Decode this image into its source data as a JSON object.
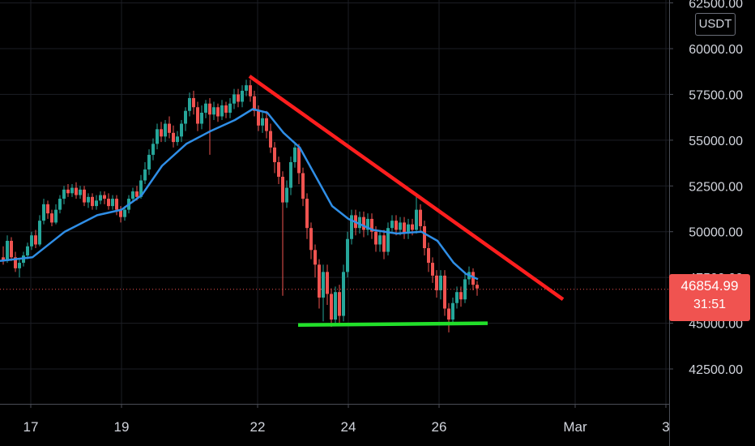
{
  "chart_data": {
    "type": "candlestick",
    "title": "",
    "xlabel": "",
    "ylabel": "",
    "y_unit": "USDT",
    "ylim": [
      40500,
      62800
    ],
    "y_ticks": [
      "62500.00",
      "60000.00",
      "57500.00",
      "55000.00",
      "52500.00",
      "50000.00",
      "47500.00",
      "45000.00",
      "42500.00"
    ],
    "y_tick_values": [
      62500,
      60000,
      57500,
      55000,
      52500,
      50000,
      47500,
      45000,
      42500
    ],
    "x_ticks": [
      "17",
      "19",
      "22",
      "24",
      "26",
      "Mar",
      "3"
    ],
    "current_price": "46854.99",
    "current_price_value": 46854.99,
    "countdown": "31:51",
    "grid": true,
    "colors": {
      "background": "#000000",
      "grid": "#1c1e24",
      "up": "#26a69a",
      "down": "#ef5350",
      "moving_average": "#2f8ee6",
      "resistance_line": "#ff1e1e",
      "support_line": "#22e02a",
      "price_line": "#f05350"
    },
    "series": [
      {
        "type": "moving_average",
        "points": [
          [
            0,
            48400
          ],
          [
            40,
            48600
          ],
          [
            80,
            50000
          ],
          [
            120,
            50900
          ],
          [
            150,
            51200
          ],
          [
            175,
            52000
          ],
          [
            200,
            53600
          ],
          [
            230,
            54800
          ],
          [
            260,
            55500
          ],
          [
            290,
            56100
          ],
          [
            312,
            56700
          ],
          [
            330,
            56500
          ],
          [
            350,
            55400
          ],
          [
            370,
            54600
          ],
          [
            390,
            53000
          ],
          [
            410,
            51400
          ],
          [
            430,
            50700
          ],
          [
            460,
            50100
          ],
          [
            490,
            49900
          ],
          [
            520,
            50000
          ],
          [
            540,
            49500
          ],
          [
            560,
            48300
          ],
          [
            575,
            47700
          ],
          [
            590,
            47400
          ]
        ]
      },
      {
        "type": "resistance_trendline",
        "points": [
          [
            308,
            58500
          ],
          [
            695,
            46300
          ]
        ]
      },
      {
        "type": "support_trendline",
        "points": [
          [
            368,
            44900
          ],
          [
            602,
            45000
          ]
        ]
      }
    ],
    "candles": [
      [
        4,
        48600,
        48400,
        49200,
        48200
      ],
      [
        9,
        48400,
        49500,
        49800,
        48300
      ],
      [
        14,
        49500,
        48600,
        49700,
        48400
      ],
      [
        19,
        48600,
        48000,
        48900,
        47800
      ],
      [
        24,
        48000,
        48300,
        48500,
        47500
      ],
      [
        29,
        48300,
        48700,
        48900,
        48100
      ],
      [
        34,
        48700,
        49200,
        49400,
        48500
      ],
      [
        39,
        49200,
        49800,
        50000,
        49000
      ],
      [
        44,
        49800,
        49300,
        50100,
        49100
      ],
      [
        49,
        49300,
        50600,
        50900,
        49200
      ],
      [
        54,
        50600,
        51500,
        51800,
        50400
      ],
      [
        59,
        51500,
        51000,
        51700,
        50700
      ],
      [
        64,
        51000,
        50500,
        51200,
        50300
      ],
      [
        69,
        50500,
        51200,
        51500,
        50400
      ],
      [
        74,
        51200,
        51800,
        52000,
        51000
      ],
      [
        79,
        51800,
        52300,
        52500,
        51500
      ],
      [
        84,
        52300,
        52100,
        52600,
        51900
      ],
      [
        89,
        52100,
        52400,
        52600,
        51900
      ],
      [
        94,
        52400,
        52000,
        52700,
        51800
      ],
      [
        99,
        52000,
        52300,
        52500,
        51800
      ],
      [
        104,
        52300,
        51600,
        52500,
        51400
      ],
      [
        109,
        51600,
        51900,
        52100,
        51300
      ],
      [
        114,
        51900,
        51400,
        52100,
        51200
      ],
      [
        119,
        51400,
        51700,
        52000,
        51200
      ],
      [
        124,
        51700,
        52000,
        52200,
        51500
      ],
      [
        129,
        52000,
        51800,
        52200,
        51500
      ],
      [
        134,
        51800,
        51400,
        52100,
        51200
      ],
      [
        139,
        51400,
        51800,
        52000,
        51200
      ],
      [
        144,
        51800,
        51200,
        52000,
        50900
      ],
      [
        149,
        51200,
        50800,
        51400,
        50500
      ],
      [
        154,
        50800,
        51200,
        51400,
        50600
      ],
      [
        159,
        51200,
        51800,
        52000,
        51000
      ],
      [
        164,
        51800,
        52200,
        52400,
        51600
      ],
      [
        169,
        52200,
        51900,
        52500,
        51700
      ],
      [
        174,
        51900,
        52800,
        53100,
        51800
      ],
      [
        179,
        52800,
        53400,
        53800,
        52600
      ],
      [
        184,
        53400,
        54200,
        54500,
        53100
      ],
      [
        189,
        54200,
        54800,
        55100,
        53900
      ],
      [
        194,
        54800,
        55600,
        55900,
        54500
      ],
      [
        199,
        55600,
        55200,
        56000,
        54900
      ],
      [
        204,
        55200,
        55900,
        56100,
        54900
      ],
      [
        209,
        55900,
        55400,
        56300,
        55100
      ],
      [
        214,
        55400,
        54900,
        55800,
        54600
      ],
      [
        219,
        54900,
        55200,
        55500,
        54700
      ],
      [
        224,
        55200,
        55900,
        56100,
        54900
      ],
      [
        229,
        55900,
        56600,
        56800,
        55500
      ],
      [
        234,
        56600,
        57300,
        57600,
        56300
      ],
      [
        239,
        57300,
        56800,
        57700,
        56400
      ],
      [
        244,
        56800,
        55900,
        57100,
        55500
      ],
      [
        249,
        55900,
        56500,
        56900,
        55600
      ],
      [
        254,
        56500,
        57000,
        57200,
        56200
      ],
      [
        259,
        57000,
        56400,
        57300,
        54200
      ],
      [
        264,
        56400,
        56800,
        57100,
        56100
      ],
      [
        269,
        56800,
        56300,
        57000,
        56000
      ],
      [
        274,
        56300,
        56900,
        57200,
        56100
      ],
      [
        279,
        56900,
        56500,
        57100,
        56200
      ],
      [
        284,
        56500,
        57000,
        57300,
        56200
      ],
      [
        289,
        57000,
        57500,
        57800,
        56700
      ],
      [
        294,
        57500,
        57100,
        57800,
        56800
      ],
      [
        299,
        57100,
        57700,
        58000,
        56800
      ],
      [
        304,
        57700,
        58000,
        58300,
        57400
      ],
      [
        309,
        58000,
        57400,
        58300,
        57100
      ],
      [
        314,
        57400,
        56600,
        57700,
        56300
      ],
      [
        319,
        56600,
        55800,
        56900,
        55500
      ],
      [
        324,
        55800,
        56200,
        56500,
        55400
      ],
      [
        329,
        56200,
        55500,
        56600,
        55100
      ],
      [
        334,
        55500,
        54600,
        55900,
        54300
      ],
      [
        339,
        54600,
        53800,
        54900,
        53200
      ],
      [
        344,
        53800,
        53000,
        54100,
        52600
      ],
      [
        349,
        53000,
        51600,
        53300,
        46500
      ],
      [
        354,
        51600,
        52400,
        52800,
        51300
      ],
      [
        359,
        52400,
        53800,
        54100,
        52000
      ],
      [
        364,
        53800,
        54600,
        54900,
        53500
      ],
      [
        369,
        54600,
        53200,
        54800,
        52600
      ],
      [
        374,
        53200,
        51800,
        53500,
        51400
      ],
      [
        379,
        51800,
        50200,
        52100,
        49600
      ],
      [
        384,
        50200,
        49000,
        50500,
        48500
      ],
      [
        389,
        49000,
        48200,
        49300,
        47500
      ],
      [
        394,
        48200,
        46400,
        48500,
        45800
      ],
      [
        399,
        46400,
        47800,
        48200,
        45100
      ],
      [
        404,
        47800,
        46600,
        48200,
        46000
      ],
      [
        409,
        46600,
        45200,
        46900,
        44800
      ],
      [
        414,
        45200,
        46700,
        47000,
        45000
      ],
      [
        419,
        46700,
        45400,
        47100,
        44900
      ],
      [
        424,
        45400,
        47800,
        48200,
        45100
      ],
      [
        429,
        47800,
        49600,
        50000,
        47500
      ],
      [
        434,
        49600,
        50900,
        51200,
        49300
      ],
      [
        439,
        50900,
        50200,
        51200,
        49800
      ],
      [
        444,
        50200,
        50800,
        51100,
        49900
      ],
      [
        449,
        50800,
        50100,
        51100,
        49700
      ],
      [
        454,
        50100,
        50700,
        51000,
        49800
      ],
      [
        459,
        50700,
        50000,
        51000,
        49600
      ],
      [
        464,
        50000,
        49300,
        50300,
        48900
      ],
      [
        469,
        49300,
        49800,
        50100,
        48900
      ],
      [
        474,
        49800,
        48900,
        50100,
        48500
      ],
      [
        479,
        48900,
        50200,
        50500,
        48700
      ],
      [
        484,
        50200,
        50600,
        50900,
        49900
      ],
      [
        489,
        50600,
        50100,
        50900,
        49800
      ],
      [
        494,
        50100,
        50500,
        50800,
        49800
      ],
      [
        499,
        50500,
        49900,
        50800,
        49600
      ],
      [
        504,
        49900,
        50400,
        50700,
        49600
      ],
      [
        509,
        50400,
        50100,
        50700,
        49800
      ],
      [
        514,
        50100,
        51200,
        51900,
        49900
      ],
      [
        519,
        51200,
        50300,
        51500,
        50000
      ],
      [
        524,
        50300,
        49100,
        50600,
        48700
      ],
      [
        529,
        49100,
        48300,
        49400,
        47800
      ],
      [
        534,
        48300,
        47600,
        48600,
        47200
      ],
      [
        539,
        47600,
        46800,
        47900,
        46400
      ],
      [
        544,
        46800,
        47600,
        47900,
        46300
      ],
      [
        549,
        47600,
        45800,
        47900,
        45400
      ],
      [
        554,
        45800,
        45200,
        46100,
        44500
      ],
      [
        559,
        45200,
        46100,
        46400,
        44900
      ],
      [
        564,
        46100,
        46700,
        47000,
        45800
      ],
      [
        569,
        46700,
        46300,
        47000,
        45900
      ],
      [
        574,
        46300,
        47400,
        47700,
        46100
      ],
      [
        579,
        47400,
        47800,
        48100,
        47100
      ],
      [
        584,
        47800,
        47100,
        48000,
        46800
      ],
      [
        589,
        47100,
        46900,
        47300,
        46500
      ]
    ]
  }
}
